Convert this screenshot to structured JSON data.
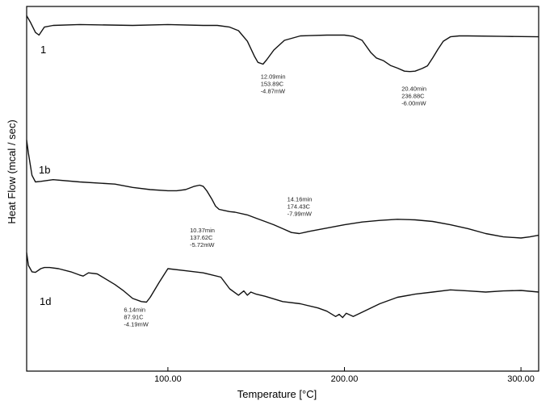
{
  "chart_data": {
    "type": "line",
    "title": "",
    "xlabel": "Temperature  [°C]",
    "ylabel": "Heat Flow (mcal / sec)",
    "xlim": [
      20,
      310
    ],
    "xticks": [
      100,
      200,
      300
    ],
    "xtick_labels": [
      "100.00",
      "200.00",
      "300.00"
    ],
    "y_ticks_shown": false,
    "grid": false,
    "series": [
      {
        "name": "1",
        "x": [
          20,
          22,
          25,
          27,
          30,
          35,
          50,
          80,
          100,
          120,
          128,
          135,
          140,
          145,
          149,
          151,
          153.9,
          156,
          160,
          166,
          175,
          190,
          200,
          205,
          210,
          215,
          218,
          222,
          226,
          230,
          234,
          236.9,
          240,
          244,
          247,
          250,
          253,
          256,
          260,
          265,
          270,
          290,
          310
        ],
        "y": [
          10.5,
          9.8,
          8.6,
          8.3,
          9.2,
          9.4,
          9.5,
          9.4,
          9.5,
          9.4,
          9.4,
          9.2,
          8.8,
          7.6,
          5.9,
          5.2,
          5.0,
          5.5,
          6.6,
          7.7,
          8.2,
          8.3,
          8.3,
          8.15,
          7.7,
          6.3,
          5.7,
          5.4,
          4.85,
          4.55,
          4.2,
          4.15,
          4.2,
          4.5,
          4.8,
          5.7,
          6.7,
          7.6,
          8.1,
          8.2,
          8.2,
          8.15,
          8.1
        ]
      },
      {
        "name": "1b",
        "x": [
          20,
          21,
          23,
          25,
          28,
          35,
          50,
          70,
          80,
          90,
          100,
          105,
          110,
          115,
          118,
          120,
          122,
          125,
          127,
          129,
          132,
          135,
          138,
          145,
          150,
          155,
          160,
          165,
          170,
          174.4,
          180,
          190,
          200,
          210,
          220,
          230,
          240,
          250,
          260,
          270,
          280,
          290,
          300,
          305,
          310
        ],
        "y": [
          10.0,
          8.8,
          6.8,
          6.2,
          6.25,
          6.4,
          6.2,
          6.0,
          5.7,
          5.5,
          5.4,
          5.4,
          5.5,
          5.8,
          5.9,
          5.8,
          5.4,
          4.6,
          4.0,
          3.7,
          3.6,
          3.5,
          3.45,
          3.2,
          2.9,
          2.6,
          2.3,
          1.95,
          1.6,
          1.5,
          1.7,
          2.0,
          2.3,
          2.55,
          2.7,
          2.8,
          2.75,
          2.6,
          2.3,
          1.95,
          1.5,
          1.2,
          1.1,
          1.2,
          1.35
        ]
      },
      {
        "name": "1d",
        "x": [
          20,
          21,
          23,
          25,
          28,
          30,
          33,
          38,
          45,
          50,
          52,
          55,
          60,
          70,
          75,
          80,
          85,
          87.9,
          90,
          95,
          100,
          110,
          120,
          130,
          135,
          140,
          143,
          145,
          147,
          150,
          155,
          165,
          175,
          185,
          190,
          195,
          197,
          199,
          201,
          205,
          210,
          220,
          230,
          240,
          250,
          260,
          270,
          280,
          290,
          300,
          310
        ],
        "y": [
          10.0,
          8.8,
          8.2,
          8.15,
          8.5,
          8.6,
          8.6,
          8.5,
          8.2,
          7.9,
          7.8,
          8.1,
          8.0,
          7.0,
          6.4,
          5.7,
          5.4,
          5.35,
          5.8,
          7.2,
          8.5,
          8.3,
          8.1,
          7.7,
          6.6,
          6.0,
          6.4,
          6.0,
          6.3,
          6.1,
          5.9,
          5.4,
          5.2,
          4.8,
          4.5,
          4.0,
          4.2,
          3.9,
          4.3,
          4.0,
          4.4,
          5.2,
          5.8,
          6.1,
          6.3,
          6.5,
          6.4,
          6.3,
          6.4,
          6.45,
          6.3
        ]
      }
    ],
    "annotations": [
      {
        "series": "1",
        "x": 153.9,
        "lines": [
          "12.09min",
          "153.89C",
          "-4.87mW"
        ]
      },
      {
        "series": "1",
        "x": 236.9,
        "lines": [
          "20.40min",
          "236.88C",
          "-6.00mW"
        ]
      },
      {
        "series": "1b",
        "x": 137.6,
        "lines": [
          "10.37min",
          "137.62C",
          "-5.72mW"
        ]
      },
      {
        "series": "1b",
        "x": 174.4,
        "lines": [
          "14.16min",
          "174.43C",
          "-7.99mW"
        ]
      },
      {
        "series": "1d",
        "x": 87.9,
        "lines": [
          "6.14min",
          "87.91C",
          "-4.19mW"
        ]
      }
    ]
  }
}
